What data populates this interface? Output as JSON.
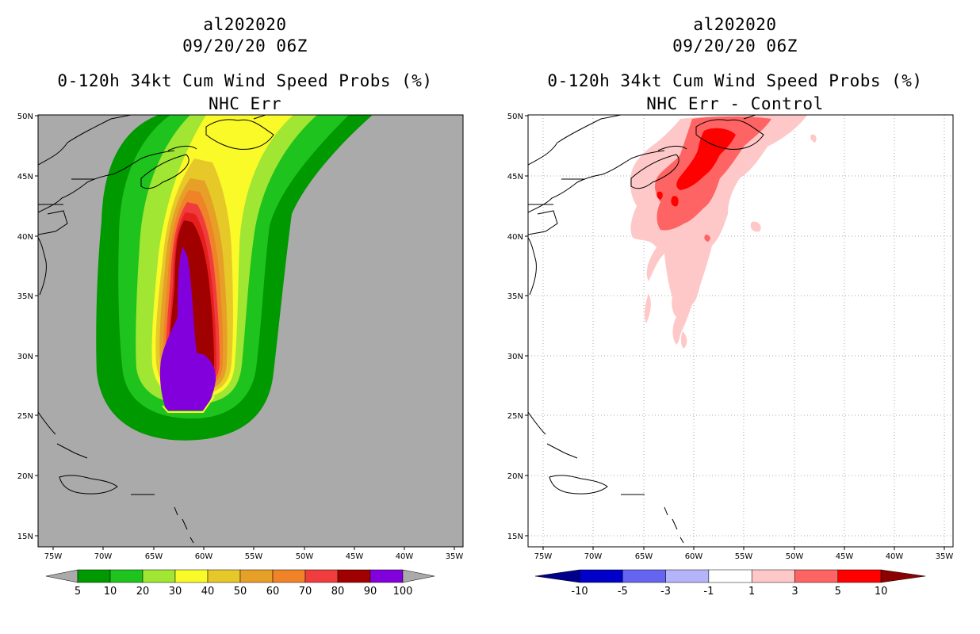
{
  "left": {
    "storm_id": "al202020",
    "datetime": "09/20/20 06Z",
    "title": "0-120h 34kt Cum Wind Speed Probs (%)",
    "subtitle": "NHC Err",
    "lat_labels": [
      "50N",
      "45N",
      "40N",
      "35N",
      "30N",
      "25N",
      "20N",
      "15N"
    ],
    "lon_labels": [
      "75W",
      "70W",
      "65W",
      "60W",
      "55W",
      "50W",
      "45W",
      "40W",
      "35W"
    ],
    "colorbar": {
      "labels": [
        "5",
        "10",
        "20",
        "30",
        "40",
        "50",
        "60",
        "70",
        "80",
        "90",
        "100"
      ],
      "colors": [
        "#009900",
        "#1ec31e",
        "#a0e632",
        "#fafa28",
        "#e6c828",
        "#e6a028",
        "#f08228",
        "#f03c3c",
        "#a00000",
        "#8200dc"
      ],
      "end_color": "#aaaaaa"
    },
    "background_color": "#aaaaaa"
  },
  "right": {
    "storm_id": "al202020",
    "datetime": "09/20/20 06Z",
    "title": "0-120h 34kt Cum Wind Speed Probs (%)",
    "subtitle": "NHC Err - Control",
    "lat_labels": [
      "50N",
      "45N",
      "40N",
      "35N",
      "30N",
      "25N",
      "20N",
      "15N"
    ],
    "lon_labels": [
      "75W",
      "70W",
      "65W",
      "60W",
      "55W",
      "50W",
      "45W",
      "40W",
      "35W"
    ],
    "colorbar": {
      "labels": [
        "-10",
        "-5",
        "-3",
        "-1",
        "1",
        "3",
        "5",
        "10"
      ],
      "colors": [
        "#0000c8",
        "#6464f0",
        "#b4b4fa",
        "#ffffff",
        "#ffc8c8",
        "#ff6464",
        "#ff0000"
      ],
      "left_end_color": "#00008c",
      "right_end_color": "#8c0000"
    },
    "background_color": "#ffffff"
  }
}
